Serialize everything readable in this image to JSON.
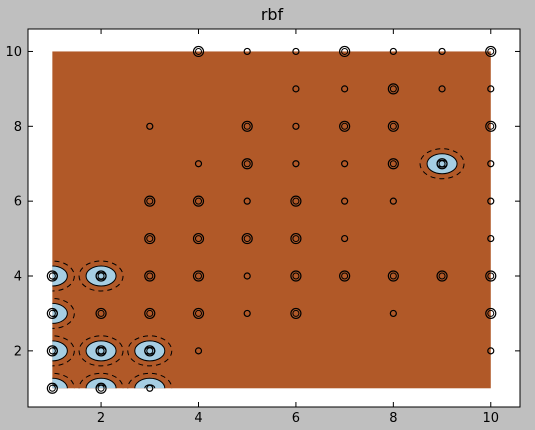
{
  "chart_data": {
    "type": "scatter",
    "title": "rbf",
    "xlabel": "",
    "ylabel": "",
    "xlim": [
      0.5,
      10.6
    ],
    "ylim": [
      0.5,
      10.6
    ],
    "x_ticks": [
      2,
      4,
      6,
      8,
      10
    ],
    "y_ticks": [
      2,
      4,
      6,
      8,
      10
    ],
    "grid": false,
    "legend": "none",
    "colors": {
      "figure_background": "#bfbfbf",
      "axes_background": "#ffffff",
      "decision_region": "#b15928",
      "margin_region": "#a6cee3",
      "points": "#000000"
    },
    "decision_region_extent": {
      "x": [
        1,
        10
      ],
      "y": [
        1,
        10
      ]
    },
    "support_vector_regions": [
      {
        "x": 1,
        "y": 1
      },
      {
        "x": 1,
        "y": 2
      },
      {
        "x": 1,
        "y": 3
      },
      {
        "x": 1,
        "y": 4
      },
      {
        "x": 2,
        "y": 1
      },
      {
        "x": 2,
        "y": 2
      },
      {
        "x": 2,
        "y": 4
      },
      {
        "x": 3,
        "y": 1
      },
      {
        "x": 3,
        "y": 2
      },
      {
        "x": 9,
        "y": 7
      }
    ],
    "points": [
      {
        "x": 1,
        "y": 1,
        "s": 2
      },
      {
        "x": 1,
        "y": 2,
        "s": 2
      },
      {
        "x": 1,
        "y": 3,
        "s": 2
      },
      {
        "x": 1,
        "y": 4,
        "s": 2
      },
      {
        "x": 2,
        "y": 1,
        "s": 2
      },
      {
        "x": 2,
        "y": 2,
        "s": 2
      },
      {
        "x": 2,
        "y": 3,
        "s": 2
      },
      {
        "x": 2,
        "y": 4,
        "s": 2
      },
      {
        "x": 3,
        "y": 1,
        "s": 1
      },
      {
        "x": 3,
        "y": 2,
        "s": 2
      },
      {
        "x": 3,
        "y": 3,
        "s": 2
      },
      {
        "x": 3,
        "y": 4,
        "s": 2
      },
      {
        "x": 3,
        "y": 5,
        "s": 2
      },
      {
        "x": 3,
        "y": 6,
        "s": 2
      },
      {
        "x": 3,
        "y": 8,
        "s": 1
      },
      {
        "x": 4,
        "y": 2,
        "s": 1
      },
      {
        "x": 4,
        "y": 3,
        "s": 2
      },
      {
        "x": 4,
        "y": 4,
        "s": 2
      },
      {
        "x": 4,
        "y": 5,
        "s": 2
      },
      {
        "x": 4,
        "y": 6,
        "s": 2
      },
      {
        "x": 4,
        "y": 7,
        "s": 1
      },
      {
        "x": 4,
        "y": 10,
        "s": 2
      },
      {
        "x": 5,
        "y": 3,
        "s": 1
      },
      {
        "x": 5,
        "y": 4,
        "s": 1
      },
      {
        "x": 5,
        "y": 5,
        "s": 2
      },
      {
        "x": 5,
        "y": 6,
        "s": 1
      },
      {
        "x": 5,
        "y": 7,
        "s": 2
      },
      {
        "x": 5,
        "y": 8,
        "s": 2
      },
      {
        "x": 5,
        "y": 10,
        "s": 1
      },
      {
        "x": 6,
        "y": 3,
        "s": 2
      },
      {
        "x": 6,
        "y": 4,
        "s": 2
      },
      {
        "x": 6,
        "y": 5,
        "s": 2
      },
      {
        "x": 6,
        "y": 6,
        "s": 2
      },
      {
        "x": 6,
        "y": 7,
        "s": 1
      },
      {
        "x": 6,
        "y": 8,
        "s": 1
      },
      {
        "x": 6,
        "y": 9,
        "s": 1
      },
      {
        "x": 6,
        "y": 10,
        "s": 1
      },
      {
        "x": 7,
        "y": 4,
        "s": 2
      },
      {
        "x": 7,
        "y": 5,
        "s": 1
      },
      {
        "x": 7,
        "y": 6,
        "s": 1
      },
      {
        "x": 7,
        "y": 7,
        "s": 1
      },
      {
        "x": 7,
        "y": 8,
        "s": 2
      },
      {
        "x": 7,
        "y": 9,
        "s": 1
      },
      {
        "x": 7,
        "y": 10,
        "s": 2
      },
      {
        "x": 8,
        "y": 3,
        "s": 1
      },
      {
        "x": 8,
        "y": 4,
        "s": 2
      },
      {
        "x": 8,
        "y": 6,
        "s": 1
      },
      {
        "x": 8,
        "y": 7,
        "s": 2
      },
      {
        "x": 8,
        "y": 8,
        "s": 2
      },
      {
        "x": 8,
        "y": 9,
        "s": 2
      },
      {
        "x": 8,
        "y": 10,
        "s": 1
      },
      {
        "x": 9,
        "y": 4,
        "s": 2
      },
      {
        "x": 9,
        "y": 7,
        "s": 2
      },
      {
        "x": 9,
        "y": 9,
        "s": 1
      },
      {
        "x": 9,
        "y": 10,
        "s": 1
      },
      {
        "x": 10,
        "y": 2,
        "s": 1
      },
      {
        "x": 10,
        "y": 3,
        "s": 2
      },
      {
        "x": 10,
        "y": 4,
        "s": 2
      },
      {
        "x": 10,
        "y": 5,
        "s": 1
      },
      {
        "x": 10,
        "y": 6,
        "s": 1
      },
      {
        "x": 10,
        "y": 7,
        "s": 1
      },
      {
        "x": 10,
        "y": 8,
        "s": 2
      },
      {
        "x": 10,
        "y": 9,
        "s": 1
      },
      {
        "x": 10,
        "y": 10,
        "s": 2
      }
    ]
  }
}
